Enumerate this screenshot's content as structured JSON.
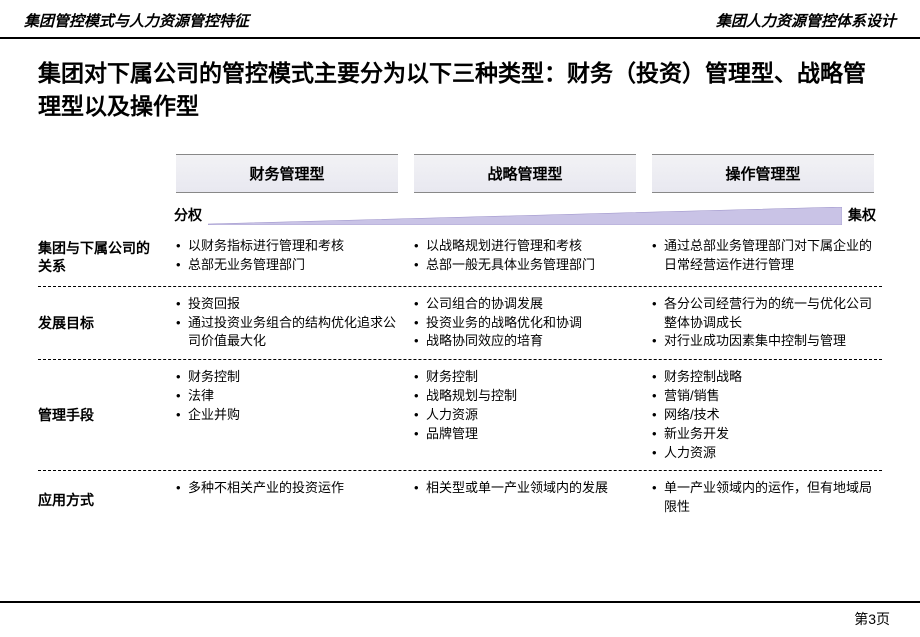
{
  "header": {
    "left": "集团管控模式与人力资源管控特征",
    "right": "集团人力资源管控体系设计"
  },
  "main_title": "集团对下属公司的管控模式主要分为以下三种类型：财务（投资）管理型、战略管理型以及操作型",
  "columns": [
    {
      "label": "财务管理型"
    },
    {
      "label": "战略管理型"
    },
    {
      "label": "操作管理型"
    }
  ],
  "spectrum": {
    "left_label": "分权",
    "right_label": "集权",
    "wedge_fill": "#c9c3e6",
    "wedge_stroke": "#9a90c8"
  },
  "rows": [
    {
      "label": "集团与下属公司的关系",
      "cells": [
        [
          "以财务指标进行管理和考核",
          "总部无业务管理部门"
        ],
        [
          "以战略规划进行管理和考核",
          "总部一般无具体业务管理部门"
        ],
        [
          "通过总部业务管理部门对下属企业的日常经营运作进行管理"
        ]
      ]
    },
    {
      "label": "发展目标",
      "cells": [
        [
          "投资回报",
          "通过投资业务组合的结构优化追求公司价值最大化"
        ],
        [
          "公司组合的协调发展",
          "投资业务的战略优化和协调",
          "战略协同效应的培育"
        ],
        [
          "各分公司经营行为的统一与优化公司整体协调成长",
          "对行业成功因素集中控制与管理"
        ]
      ]
    },
    {
      "label": "管理手段",
      "cells": [
        [
          "财务控制",
          "法律",
          "企业并购"
        ],
        [
          "财务控制",
          "战略规划与控制",
          "人力资源",
          "品牌管理"
        ],
        [
          "财务控制战略",
          "营销/销售",
          "网络/技术",
          "新业务开发",
          "人力资源"
        ]
      ]
    },
    {
      "label": "应用方式",
      "cells": [
        [
          "多种不相关产业的投资运作"
        ],
        [
          "相关型或单一产业领域内的发展"
        ],
        [
          "单一产业领域内的运作，但有地域局限性"
        ]
      ]
    }
  ],
  "page_number": "第3页",
  "colors": {
    "rule": "#000000",
    "header_bg_top": "#f2f2f5",
    "header_bg_bottom": "#e8e8f0"
  }
}
